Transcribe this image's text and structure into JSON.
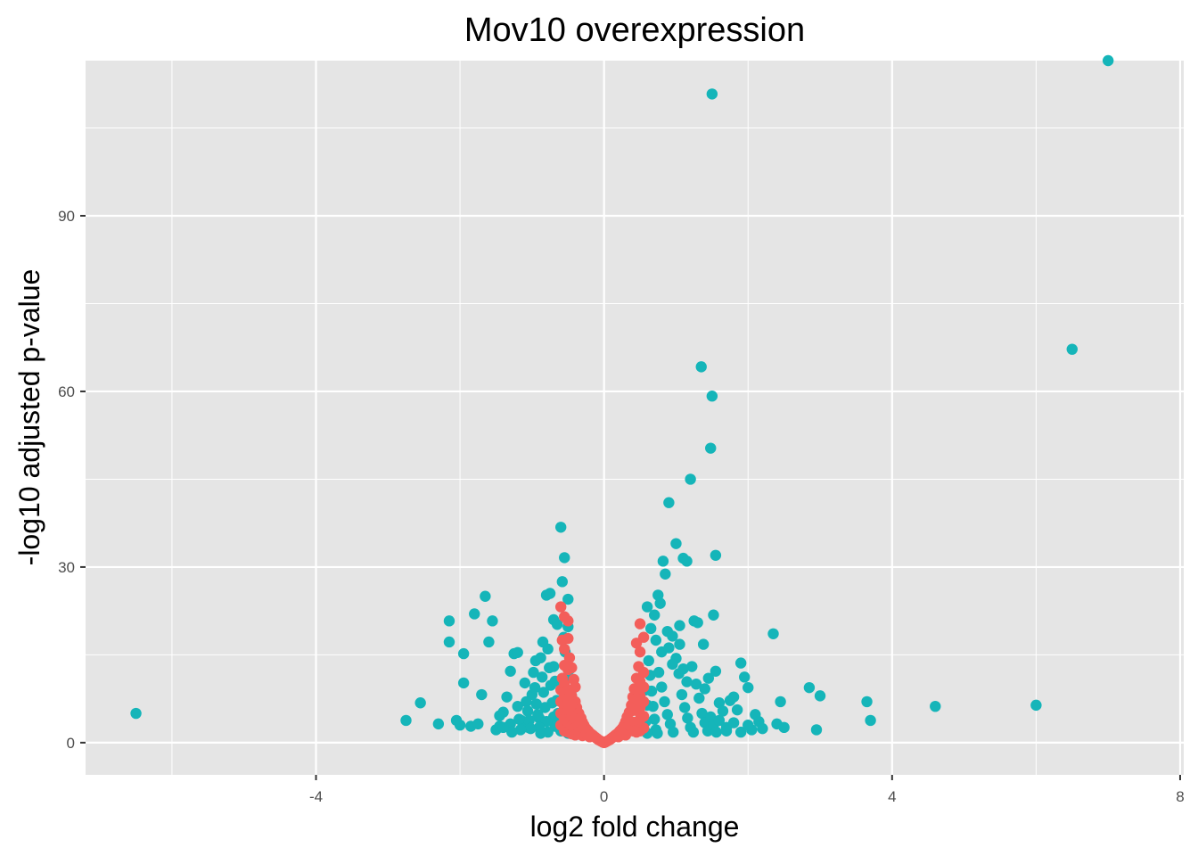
{
  "chart_data": {
    "type": "scatter",
    "title": "Mov10 overexpression",
    "xlabel": "log2 fold change",
    "ylabel": "-log10 adjusted p-value",
    "xlim": [
      -7.2,
      8.05
    ],
    "ylim": [
      -5.5,
      116.5
    ],
    "xticks": [
      -4,
      0,
      4,
      8
    ],
    "yticks": [
      0,
      30,
      60,
      90
    ],
    "x_minor": [
      -6,
      -2,
      2,
      6
    ],
    "y_minor": [
      15,
      45,
      75,
      105
    ],
    "grid": true,
    "panel_background": "#e5e5e5",
    "grid_color": "#ffffff",
    "legend": "none",
    "series": [
      {
        "color": "#15b5b9",
        "points": [
          [
            -6.5,
            5.0
          ],
          [
            -2.75,
            3.8
          ],
          [
            -2.55,
            6.8
          ],
          [
            -2.3,
            3.2
          ],
          [
            -2.15,
            20.8
          ],
          [
            -2.15,
            17.2
          ],
          [
            -2.05,
            3.8
          ],
          [
            -2.0,
            3.0
          ],
          [
            -1.95,
            10.2
          ],
          [
            -1.95,
            15.2
          ],
          [
            -1.85,
            2.8
          ],
          [
            -1.8,
            22.0
          ],
          [
            -1.75,
            3.2
          ],
          [
            -1.7,
            8.2
          ],
          [
            -1.65,
            25.0
          ],
          [
            -1.6,
            17.2
          ],
          [
            -1.55,
            20.8
          ],
          [
            -1.5,
            2.2
          ],
          [
            -1.45,
            2.8
          ],
          [
            -1.4,
            5.2
          ],
          [
            -1.35,
            7.8
          ],
          [
            -1.3,
            12.2
          ],
          [
            -1.25,
            15.2
          ],
          [
            -1.2,
            15.4
          ],
          [
            -1.15,
            3.8
          ],
          [
            -1.1,
            10.2
          ],
          [
            -1.05,
            2.6
          ],
          [
            -1.0,
            8.2
          ],
          [
            -0.95,
            14.0
          ],
          [
            -0.9,
            4.2
          ],
          [
            -0.85,
            17.2
          ],
          [
            -0.8,
            25.2
          ],
          [
            -0.75,
            25.5
          ],
          [
            -0.7,
            21.0
          ],
          [
            -0.65,
            20.2
          ],
          [
            -0.6,
            36.8
          ],
          [
            -0.58,
            27.5
          ],
          [
            -0.55,
            31.6
          ],
          [
            -0.5,
            24.5
          ],
          [
            -0.5,
            19.8
          ],
          [
            -0.48,
            12.5
          ],
          [
            -0.46,
            8.5
          ],
          [
            -0.7,
            13.0
          ],
          [
            -0.68,
            10.5
          ],
          [
            -0.66,
            7.2
          ],
          [
            -0.64,
            5.0
          ],
          [
            -0.62,
            3.5
          ],
          [
            -0.6,
            2.0
          ],
          [
            -0.78,
            16.0
          ],
          [
            -0.76,
            12.8
          ],
          [
            -0.74,
            9.8
          ],
          [
            -0.72,
            6.8
          ],
          [
            -0.7,
            4.4
          ],
          [
            -0.68,
            2.8
          ],
          [
            -0.88,
            14.5
          ],
          [
            -0.86,
            11.2
          ],
          [
            -0.84,
            8.6
          ],
          [
            -0.82,
            6.0
          ],
          [
            -0.8,
            3.6
          ],
          [
            -0.78,
            1.8
          ],
          [
            -0.98,
            12.0
          ],
          [
            -0.96,
            9.4
          ],
          [
            -0.94,
            6.6
          ],
          [
            -0.92,
            4.8
          ],
          [
            -0.9,
            2.6
          ],
          [
            -0.88,
            1.6
          ],
          [
            -1.08,
            7.0
          ],
          [
            -1.06,
            5.4
          ],
          [
            -1.04,
            3.8
          ],
          [
            -1.02,
            2.4
          ],
          [
            -1.2,
            6.2
          ],
          [
            -1.18,
            4.0
          ],
          [
            -1.16,
            2.2
          ],
          [
            -1.3,
            3.2
          ],
          [
            -1.28,
            1.8
          ],
          [
            -1.4,
            2.6
          ],
          [
            -1.45,
            4.6
          ],
          [
            -0.56,
            18.0
          ],
          [
            -0.54,
            15.5
          ],
          [
            -0.52,
            11.0
          ],
          [
            -0.5,
            6.0
          ],
          [
            -0.5,
            3.0
          ],
          [
            -0.5,
            1.6
          ],
          [
            0.6,
            23.2
          ],
          [
            0.65,
            19.5
          ],
          [
            0.7,
            21.8
          ],
          [
            0.72,
            17.5
          ],
          [
            0.75,
            25.2
          ],
          [
            0.78,
            23.8
          ],
          [
            0.8,
            15.5
          ],
          [
            0.82,
            31.0
          ],
          [
            0.85,
            28.8
          ],
          [
            0.88,
            19.0
          ],
          [
            0.9,
            41.0
          ],
          [
            0.95,
            18.2
          ],
          [
            1.0,
            34.0
          ],
          [
            1.05,
            20.0
          ],
          [
            1.1,
            31.5
          ],
          [
            1.15,
            31.0
          ],
          [
            1.2,
            45.0
          ],
          [
            1.22,
            13.0
          ],
          [
            1.25,
            20.8
          ],
          [
            1.3,
            20.5
          ],
          [
            1.35,
            64.2
          ],
          [
            1.38,
            16.8
          ],
          [
            1.4,
            9.2
          ],
          [
            1.45,
            11.0
          ],
          [
            1.5,
            59.2
          ],
          [
            1.48,
            50.3
          ],
          [
            1.52,
            21.8
          ],
          [
            1.55,
            32.0
          ],
          [
            1.5,
            110.8
          ],
          [
            1.55,
            12.2
          ],
          [
            1.6,
            6.8
          ],
          [
            1.65,
            5.4
          ],
          [
            1.7,
            2.6
          ],
          [
            1.75,
            7.2
          ],
          [
            1.8,
            7.8
          ],
          [
            1.85,
            5.6
          ],
          [
            1.9,
            13.6
          ],
          [
            1.95,
            11.2
          ],
          [
            2.0,
            9.4
          ],
          [
            2.05,
            2.2
          ],
          [
            2.1,
            4.8
          ],
          [
            2.15,
            3.6
          ],
          [
            2.2,
            2.4
          ],
          [
            2.35,
            18.6
          ],
          [
            2.4,
            3.2
          ],
          [
            2.45,
            7.0
          ],
          [
            2.5,
            2.6
          ],
          [
            2.85,
            9.4
          ],
          [
            2.95,
            2.2
          ],
          [
            3.0,
            8.0
          ],
          [
            3.65,
            7.0
          ],
          [
            3.7,
            3.8
          ],
          [
            4.6,
            6.2
          ],
          [
            6.0,
            6.4
          ],
          [
            6.5,
            67.2
          ],
          [
            7.0,
            116.5
          ],
          [
            0.62,
            14.0
          ],
          [
            0.64,
            11.5
          ],
          [
            0.66,
            8.8
          ],
          [
            0.68,
            6.2
          ],
          [
            0.7,
            4.0
          ],
          [
            0.72,
            2.2
          ],
          [
            0.74,
            1.6
          ],
          [
            0.76,
            12.0
          ],
          [
            0.8,
            9.5
          ],
          [
            0.84,
            7.0
          ],
          [
            0.88,
            4.8
          ],
          [
            0.92,
            3.2
          ],
          [
            0.96,
            1.8
          ],
          [
            1.0,
            14.4
          ],
          [
            1.04,
            11.8
          ],
          [
            1.08,
            8.2
          ],
          [
            1.12,
            6.0
          ],
          [
            1.16,
            4.2
          ],
          [
            1.2,
            2.6
          ],
          [
            1.24,
            1.8
          ],
          [
            1.28,
            10.0
          ],
          [
            1.32,
            7.6
          ],
          [
            1.36,
            5.0
          ],
          [
            1.4,
            3.4
          ],
          [
            1.44,
            2.0
          ],
          [
            1.48,
            4.4
          ],
          [
            1.52,
            3.0
          ],
          [
            1.56,
            1.8
          ],
          [
            1.6,
            3.8
          ],
          [
            1.7,
            2.0
          ],
          [
            1.8,
            3.4
          ],
          [
            1.9,
            1.8
          ],
          [
            2.0,
            3.0
          ],
          [
            0.9,
            16.2
          ],
          [
            0.95,
            13.4
          ],
          [
            1.05,
            16.8
          ],
          [
            1.1,
            12.6
          ],
          [
            1.15,
            10.4
          ],
          [
            0.58,
            9.0
          ],
          [
            0.6,
            6.4
          ],
          [
            0.58,
            3.6
          ],
          [
            0.6,
            1.6
          ]
        ]
      },
      {
        "color": "#f35e5a",
        "points": [
          [
            -0.6,
            23.2
          ],
          [
            -0.55,
            21.5
          ],
          [
            -0.5,
            20.8
          ],
          [
            -0.58,
            17.5
          ],
          [
            -0.55,
            16.0
          ],
          [
            -0.5,
            17.8
          ],
          [
            -0.48,
            14.5
          ],
          [
            -0.5,
            12.5
          ],
          [
            -0.45,
            12.8
          ],
          [
            -0.42,
            10.8
          ],
          [
            -0.4,
            9.5
          ],
          [
            -0.45,
            8.0
          ],
          [
            -0.4,
            7.0
          ],
          [
            -0.38,
            6.0
          ],
          [
            -0.35,
            5.0
          ],
          [
            -0.32,
            4.2
          ],
          [
            -0.3,
            3.5
          ],
          [
            -0.28,
            3.0
          ],
          [
            -0.25,
            2.4
          ],
          [
            -0.22,
            2.0
          ],
          [
            -0.2,
            1.7
          ],
          [
            -0.17,
            1.4
          ],
          [
            -0.15,
            1.2
          ],
          [
            -0.12,
            0.9
          ],
          [
            -0.1,
            0.7
          ],
          [
            -0.08,
            0.5
          ],
          [
            -0.05,
            0.3
          ],
          [
            -0.02,
            0.1
          ],
          [
            0.0,
            0.0
          ],
          [
            0.02,
            0.1
          ],
          [
            0.05,
            0.3
          ],
          [
            0.08,
            0.5
          ],
          [
            0.1,
            0.7
          ],
          [
            0.12,
            0.9
          ],
          [
            0.15,
            1.2
          ],
          [
            0.17,
            1.4
          ],
          [
            0.2,
            1.7
          ],
          [
            0.22,
            2.0
          ],
          [
            0.25,
            2.4
          ],
          [
            0.28,
            3.0
          ],
          [
            0.3,
            3.6
          ],
          [
            0.32,
            4.4
          ],
          [
            0.35,
            5.2
          ],
          [
            0.38,
            6.4
          ],
          [
            0.4,
            7.8
          ],
          [
            0.42,
            9.2
          ],
          [
            0.45,
            11.0
          ],
          [
            0.48,
            13.0
          ],
          [
            0.5,
            15.5
          ],
          [
            0.55,
            18.0
          ],
          [
            0.5,
            20.3
          ],
          [
            0.45,
            17.0
          ],
          [
            -0.55,
            13.2
          ],
          [
            -0.58,
            11.0
          ],
          [
            -0.6,
            9.0
          ],
          [
            -0.6,
            7.0
          ],
          [
            -0.6,
            5.0
          ],
          [
            -0.6,
            3.0
          ],
          [
            -0.55,
            10.0
          ],
          [
            -0.55,
            8.0
          ],
          [
            -0.55,
            6.0
          ],
          [
            -0.55,
            4.0
          ],
          [
            -0.55,
            2.0
          ],
          [
            -0.5,
            9.0
          ],
          [
            -0.5,
            7.5
          ],
          [
            -0.5,
            5.5
          ],
          [
            -0.5,
            3.5
          ],
          [
            -0.5,
            1.8
          ],
          [
            -0.45,
            6.5
          ],
          [
            -0.45,
            4.5
          ],
          [
            -0.45,
            2.8
          ],
          [
            -0.45,
            1.5
          ],
          [
            -0.4,
            4.0
          ],
          [
            -0.4,
            2.5
          ],
          [
            -0.4,
            1.3
          ],
          [
            -0.35,
            3.0
          ],
          [
            -0.35,
            1.8
          ],
          [
            -0.3,
            2.2
          ],
          [
            -0.3,
            1.2
          ],
          [
            -0.25,
            1.5
          ],
          [
            -0.2,
            1.0
          ],
          [
            0.55,
            12.0
          ],
          [
            0.55,
            9.5
          ],
          [
            0.55,
            7.0
          ],
          [
            0.55,
            4.5
          ],
          [
            0.55,
            2.5
          ],
          [
            0.5,
            10.5
          ],
          [
            0.5,
            8.0
          ],
          [
            0.5,
            6.0
          ],
          [
            0.5,
            4.0
          ],
          [
            0.5,
            2.0
          ],
          [
            0.45,
            7.5
          ],
          [
            0.45,
            5.5
          ],
          [
            0.45,
            3.5
          ],
          [
            0.45,
            1.8
          ],
          [
            0.4,
            5.5
          ],
          [
            0.4,
            3.5
          ],
          [
            0.4,
            2.0
          ],
          [
            0.35,
            3.5
          ],
          [
            0.35,
            2.0
          ],
          [
            0.3,
            2.5
          ],
          [
            0.3,
            1.3
          ],
          [
            0.25,
            1.6
          ],
          [
            0.2,
            1.0
          ]
        ]
      }
    ]
  }
}
